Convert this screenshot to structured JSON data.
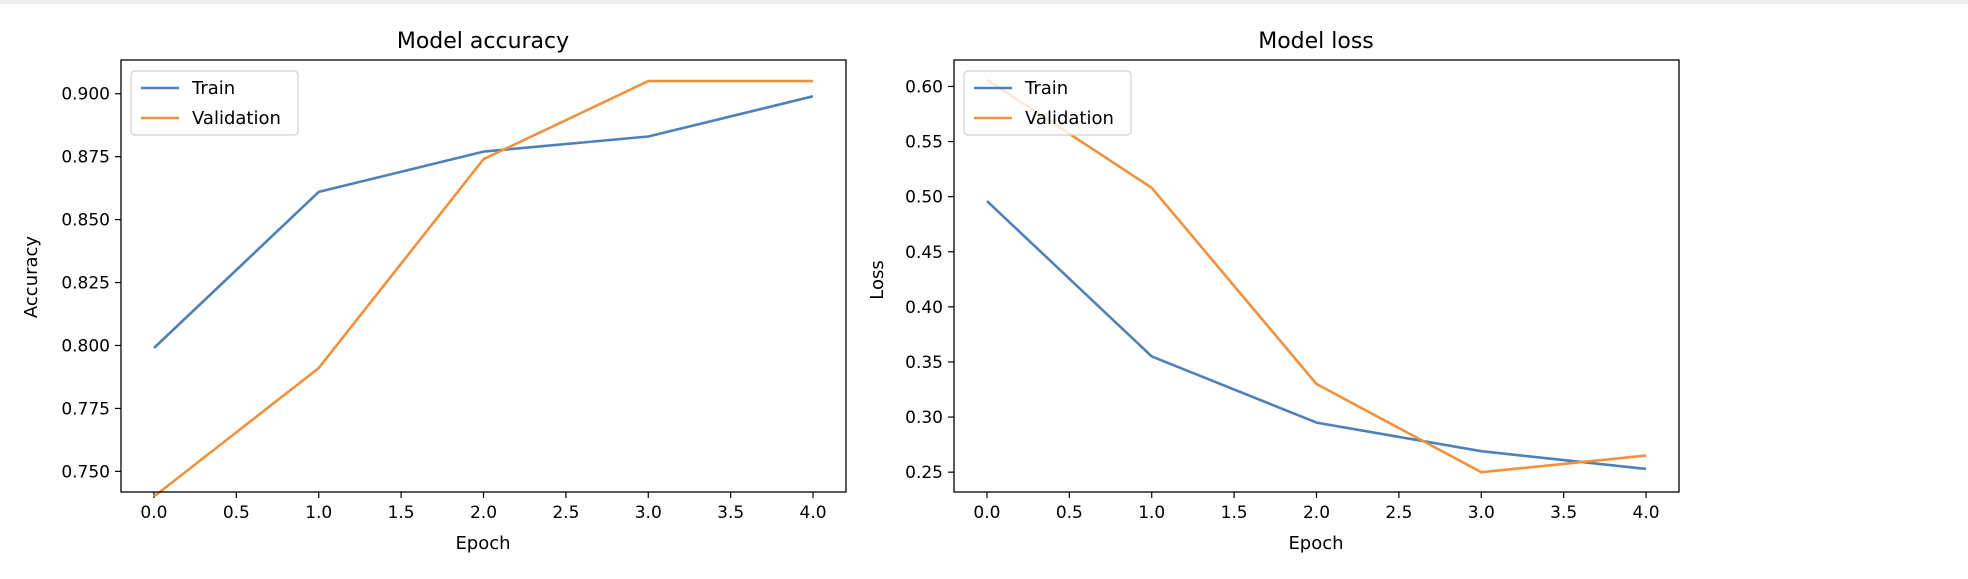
{
  "chart_data": [
    {
      "type": "line",
      "title": "Model accuracy",
      "xlabel": "Epoch",
      "ylabel": "Accuracy",
      "x": [
        0,
        1,
        2,
        3,
        4
      ],
      "series": [
        {
          "name": "Train",
          "values": [
            0.799,
            0.861,
            0.877,
            0.883,
            0.899
          ],
          "color": "#4f81b8"
        },
        {
          "name": "Validation",
          "values": [
            0.74,
            0.791,
            0.874,
            0.905,
            0.905
          ],
          "color": "#f0913d"
        }
      ],
      "xlim": [
        -0.2,
        4.2
      ],
      "ylim": [
        0.7418,
        0.9134
      ],
      "xticks": [
        0,
        0.5,
        1,
        1.5,
        2,
        2.5,
        3,
        3.5,
        4
      ],
      "xtick_labels": [
        "0.0",
        "0.5",
        "1.0",
        "1.5",
        "2.0",
        "2.5",
        "3.0",
        "3.5",
        "4.0"
      ],
      "yticks": [
        0.75,
        0.775,
        0.8,
        0.825,
        0.85,
        0.875,
        0.9
      ],
      "ytick_labels": [
        "0.750",
        "0.775",
        "0.800",
        "0.825",
        "0.850",
        "0.875",
        "0.900"
      ],
      "legend": "upper-left",
      "grid": false
    },
    {
      "type": "line",
      "title": "Model loss",
      "xlabel": "Epoch",
      "ylabel": "Loss",
      "x": [
        0,
        1,
        2,
        3,
        4
      ],
      "series": [
        {
          "name": "Train",
          "values": [
            0.496,
            0.355,
            0.295,
            0.269,
            0.253
          ],
          "color": "#4f81b8"
        },
        {
          "name": "Validation",
          "values": [
            0.606,
            0.508,
            0.33,
            0.25,
            0.265
          ],
          "color": "#f0913d"
        }
      ],
      "xlim": [
        -0.2,
        4.2
      ],
      "ylim": [
        0.232,
        0.624
      ],
      "xticks": [
        0,
        0.5,
        1,
        1.5,
        2,
        2.5,
        3,
        3.5,
        4
      ],
      "xtick_labels": [
        "0.0",
        "0.5",
        "1.0",
        "1.5",
        "2.0",
        "2.5",
        "3.0",
        "3.5",
        "4.0"
      ],
      "yticks": [
        0.25,
        0.3,
        0.35,
        0.4,
        0.45,
        0.5,
        0.55,
        0.6
      ],
      "ytick_labels": [
        "0.25",
        "0.30",
        "0.35",
        "0.40",
        "0.45",
        "0.50",
        "0.55",
        "0.60"
      ],
      "legend": "upper-left",
      "grid": false
    }
  ]
}
